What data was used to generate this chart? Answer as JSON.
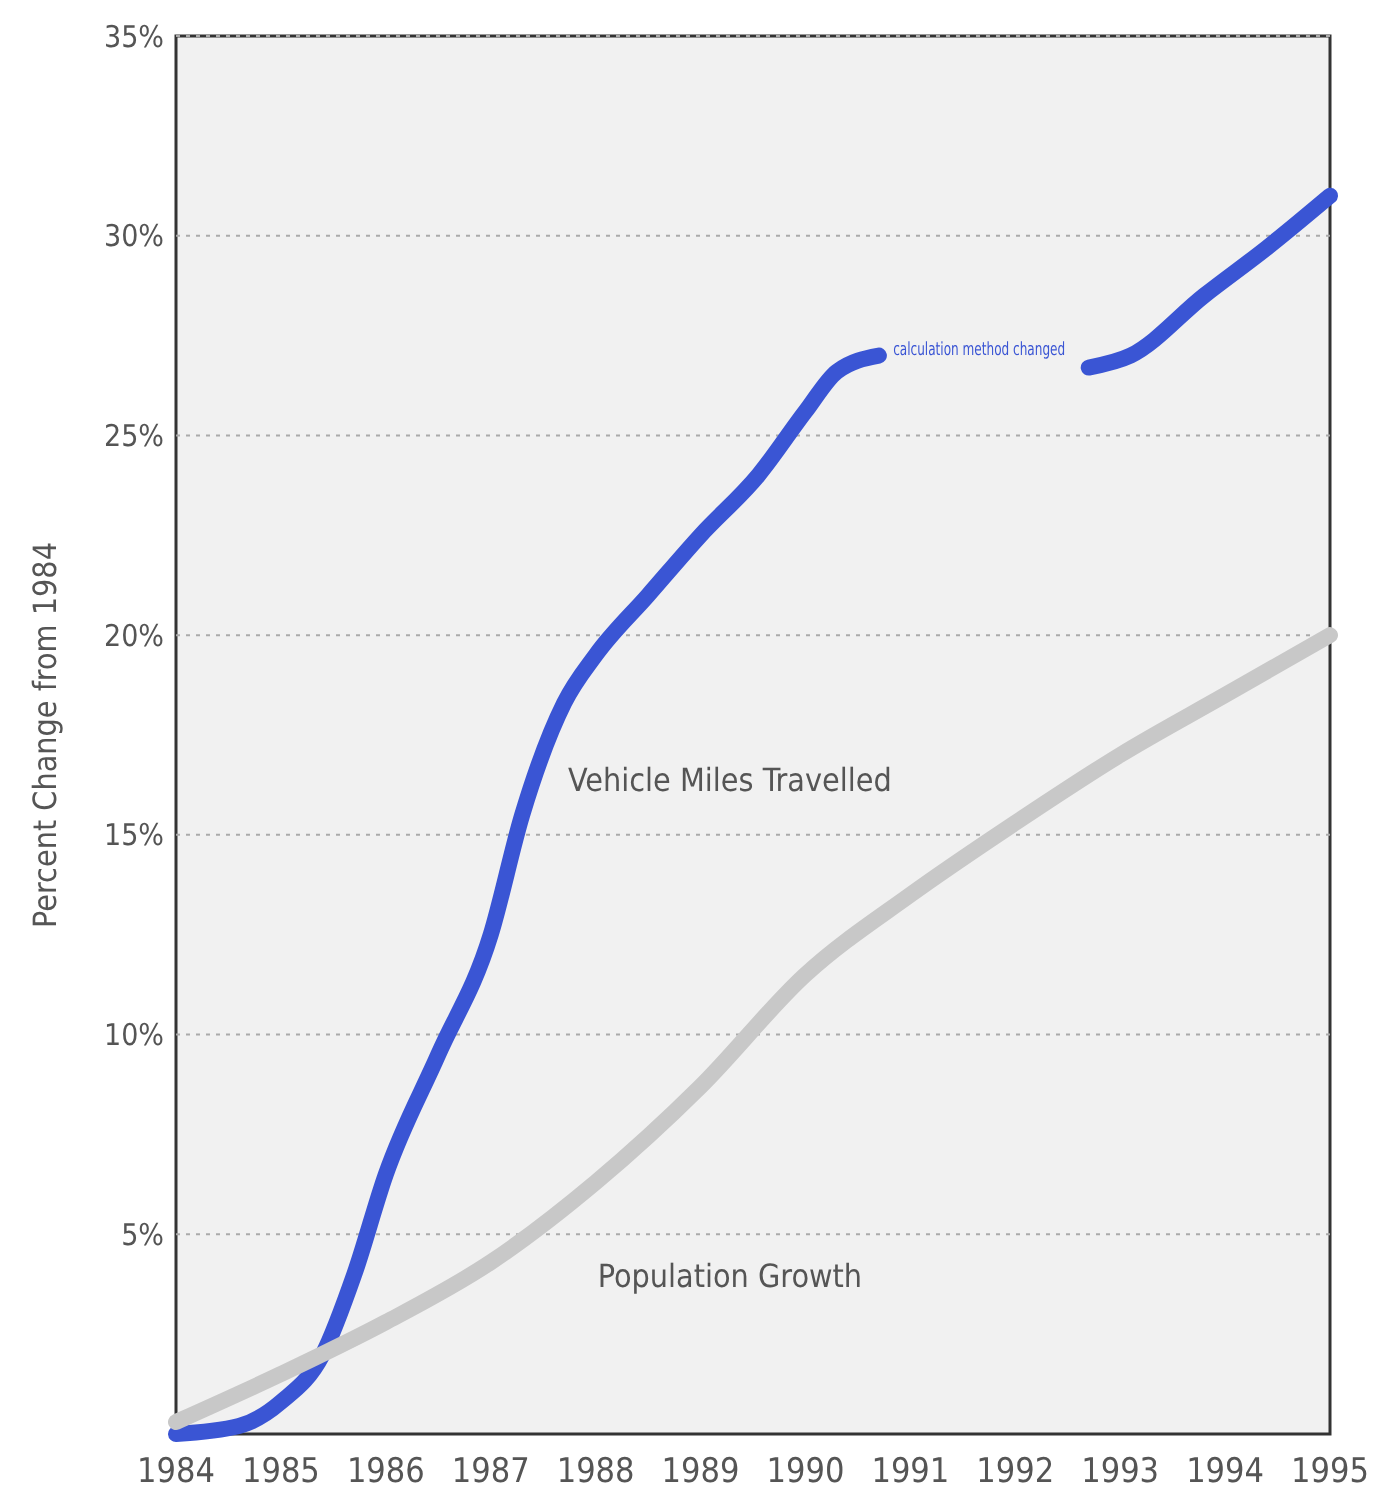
{
  "chart_data": {
    "type": "line",
    "ylabel": "Percent Change from 1984",
    "x": [
      1984,
      1984.6,
      1985,
      1985.4,
      1985.7,
      1986,
      1986.5,
      1987,
      1987.3,
      1987.7,
      1988,
      1988.5,
      1989,
      1989.55,
      1990,
      1990.3,
      1990.7,
      1991.5,
      1992.7,
      1993.1,
      1993.8,
      1994.4,
      1995
    ],
    "series": [
      {
        "name": "Vehicle Miles Travelled",
        "color": "#3a55d4",
        "values": [
          0,
          0.2,
          0.8,
          2,
          4,
          6.5,
          9.5,
          12.5,
          15.5,
          18.3,
          19.5,
          21,
          22.5,
          24,
          25.6,
          26.6,
          27,
          null,
          26.7,
          27,
          28.5,
          29.7,
          31
        ]
      },
      {
        "name": "Population Growth",
        "color": "#c8c8c8",
        "x": [
          1984,
          1985,
          1986,
          1987,
          1988,
          1989,
          1990,
          1991,
          1992,
          1993,
          1994,
          1995
        ],
        "values": [
          0.3,
          1.5,
          2.8,
          4.3,
          6.3,
          8.7,
          11.5,
          13.5,
          15.3,
          17,
          18.5,
          20
        ]
      }
    ],
    "annotations": [
      "calculation method changed"
    ],
    "xlim": [
      1984,
      1995
    ],
    "xticks": [
      1984,
      1985,
      1986,
      1987,
      1988,
      1989,
      1990,
      1991,
      1992,
      1993,
      1994,
      1995
    ],
    "ylim": [
      0,
      35
    ],
    "yticks": [
      {
        "value": 5,
        "label": "5%"
      },
      {
        "value": 10,
        "label": "10%"
      },
      {
        "value": 15,
        "label": "15%"
      },
      {
        "value": 20,
        "label": "20%"
      },
      {
        "value": 25,
        "label": "25%"
      },
      {
        "value": 30,
        "label": "30%"
      },
      {
        "value": 35,
        "label": "35%"
      }
    ],
    "grid": "y",
    "line_style": "solid",
    "marker": "none"
  }
}
